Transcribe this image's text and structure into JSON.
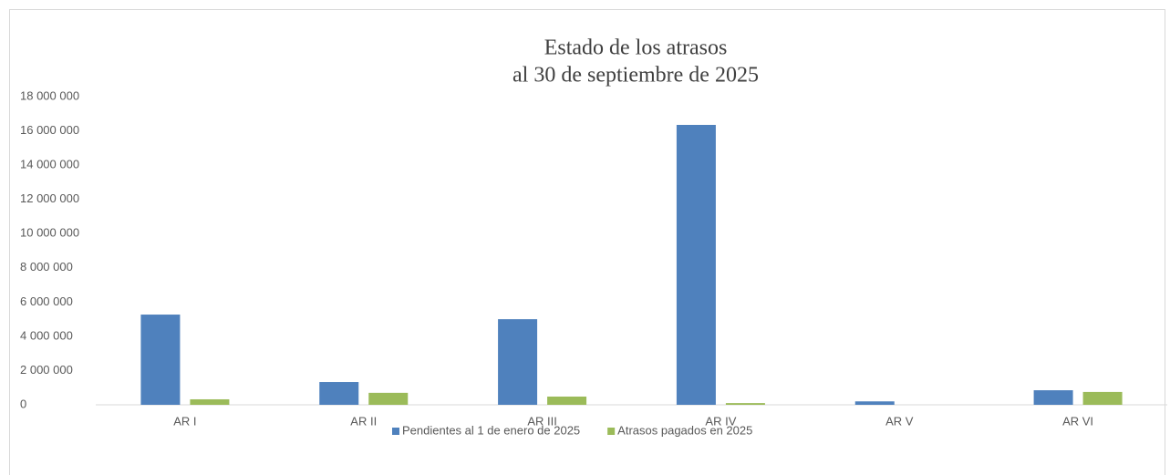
{
  "chart_data": {
    "type": "bar",
    "title": [
      "Estado de los atrasos",
      "al 30 de septiembre de 2025"
    ],
    "categories": [
      "AR I",
      "AR II",
      "AR III",
      "AR IV",
      "AR V",
      "AR VI"
    ],
    "series": [
      {
        "name": "Pendientes al 1 de enero de 2025",
        "color": "#4f81bd",
        "values": [
          5270000,
          1330000,
          5000000,
          16350000,
          200000,
          850000
        ]
      },
      {
        "name": "Atrasos pagados en 2025",
        "color": "#9bbb59",
        "values": [
          320000,
          700000,
          480000,
          100000,
          0,
          750000
        ]
      }
    ],
    "ylim": [
      0,
      18000000
    ],
    "yticks": [
      0,
      {
        "value": 2000000,
        "label": "2 000 000"
      },
      {
        "value": 4000000,
        "label": "4 000 000"
      },
      {
        "value": 6000000,
        "label": "6 000 000"
      },
      {
        "value": 8000000,
        "label": "8 000 000"
      },
      {
        "value": 10000000,
        "label": "10 000 000"
      },
      {
        "value": 12000000,
        "label": "12 000 000"
      },
      {
        "value": 14000000,
        "label": "14 000 000"
      },
      {
        "value": 16000000,
        "label": "16 000 000"
      },
      {
        "value": 18000000,
        "label": "18 000 000"
      }
    ],
    "legend": "bottom"
  }
}
